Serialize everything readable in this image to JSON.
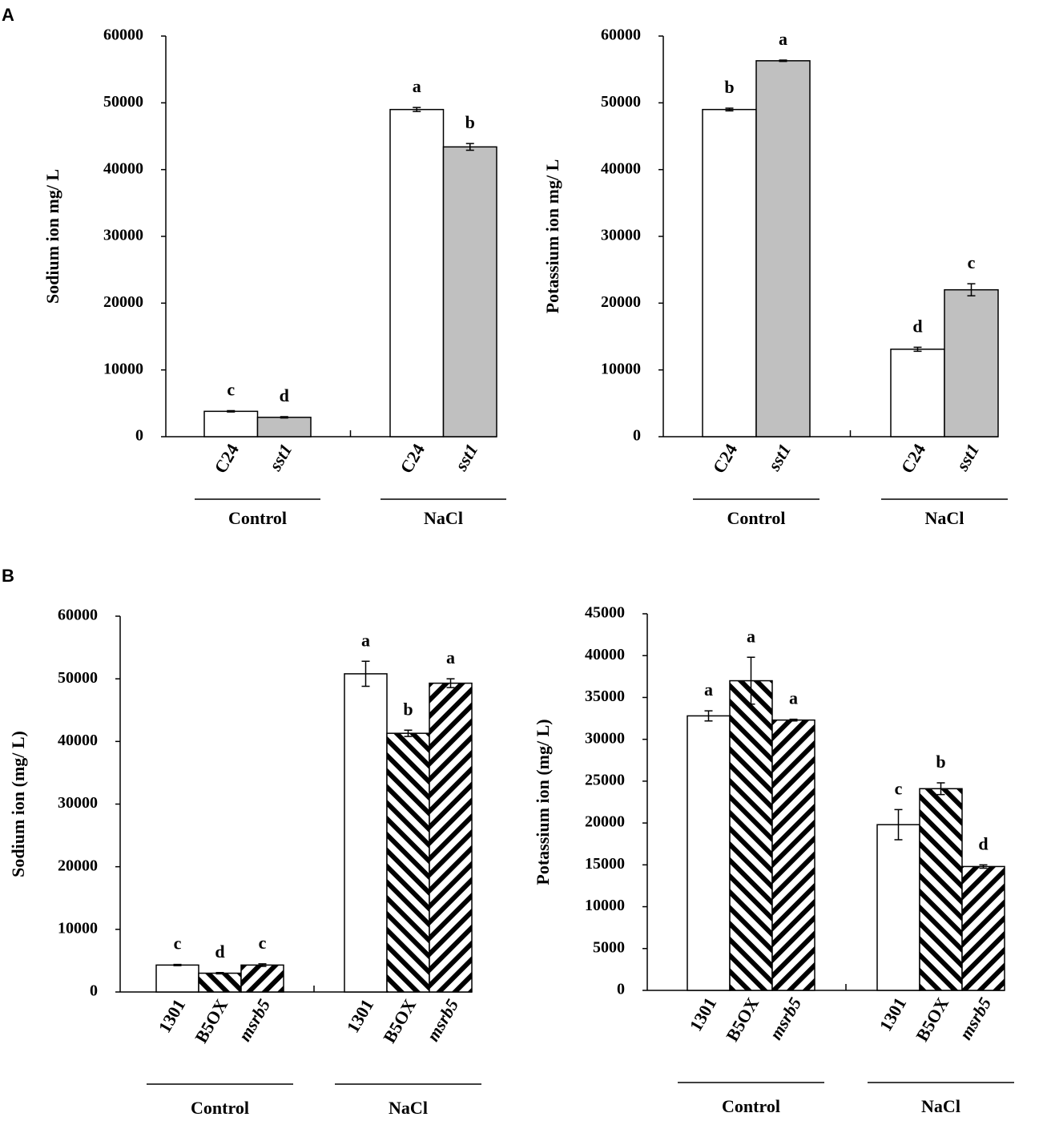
{
  "panel_labels": [
    "A",
    "B"
  ],
  "chart_data": [
    {
      "type": "bar",
      "ylabel": "Sodium ion mg/ L",
      "categories": [
        "Control",
        "NaCl"
      ],
      "ylim": [
        0,
        60000
      ],
      "yticks": [
        0,
        10000,
        20000,
        30000,
        40000,
        50000,
        60000
      ],
      "series": [
        {
          "name": "C24",
          "color": "#ffffff",
          "italic": false,
          "values": [
            3800,
            49000
          ],
          "errors": [
            100,
            300
          ],
          "labels": [
            "c",
            "a"
          ]
        },
        {
          "name": "sst1",
          "color": "#c0c0c0",
          "italic": true,
          "values": [
            2900,
            43400
          ],
          "errors": [
            100,
            500
          ],
          "labels": [
            "d",
            "b"
          ]
        }
      ]
    },
    {
      "type": "bar",
      "ylabel": "Potassium ion mg/ L",
      "categories": [
        "Control",
        "NaCl"
      ],
      "ylim": [
        0,
        60000
      ],
      "yticks": [
        0,
        10000,
        20000,
        30000,
        40000,
        50000,
        60000
      ],
      "series": [
        {
          "name": "C24",
          "color": "#ffffff",
          "italic": false,
          "values": [
            49000,
            13100
          ],
          "errors": [
            200,
            300
          ],
          "labels": [
            "b",
            "d"
          ]
        },
        {
          "name": "sst1",
          "color": "#c0c0c0",
          "italic": true,
          "values": [
            56300,
            22000
          ],
          "errors": [
            100,
            900
          ],
          "labels": [
            "a",
            "c"
          ]
        }
      ]
    },
    {
      "type": "bar",
      "ylabel": "Sodium ion (mg/ L)",
      "categories": [
        "Control",
        "NaCl"
      ],
      "ylim": [
        0,
        60000
      ],
      "yticks": [
        0,
        10000,
        20000,
        30000,
        40000,
        50000,
        60000
      ],
      "series": [
        {
          "name": "1301",
          "color": "#ffffff",
          "italic": false,
          "values": [
            4300,
            50800
          ],
          "errors": [
            100,
            2000
          ],
          "labels": [
            "c",
            "a"
          ]
        },
        {
          "name": "B5OX",
          "color": "#000000",
          "pattern": "backslash",
          "italic": false,
          "values": [
            3000,
            41300
          ],
          "errors": [
            100,
            500
          ],
          "labels": [
            "d",
            "b"
          ]
        },
        {
          "name": "msrb5",
          "color": "#000000",
          "pattern": "slash",
          "italic": true,
          "values": [
            4300,
            49300
          ],
          "errors": [
            200,
            700
          ],
          "labels": [
            "c",
            "a"
          ]
        }
      ]
    },
    {
      "type": "bar",
      "ylabel": "Potassium ion (mg/ L)",
      "categories": [
        "Control",
        "NaCl"
      ],
      "ylim": [
        0,
        45000
      ],
      "yticks": [
        0,
        5000,
        10000,
        15000,
        20000,
        25000,
        30000,
        35000,
        40000,
        45000
      ],
      "series": [
        {
          "name": "1301",
          "color": "#ffffff",
          "italic": false,
          "values": [
            32800,
            19800
          ],
          "errors": [
            600,
            1800
          ],
          "labels": [
            "a",
            "c"
          ]
        },
        {
          "name": "B5OX",
          "color": "#000000",
          "pattern": "backslash",
          "italic": false,
          "values": [
            37000,
            24100
          ],
          "errors": [
            2800,
            700
          ],
          "labels": [
            "a",
            "b"
          ]
        },
        {
          "name": "msrb5",
          "color": "#000000",
          "pattern": "slash",
          "italic": true,
          "values": [
            32300,
            14800
          ],
          "errors": [
            100,
            200
          ],
          "labels": [
            "a",
            "d"
          ]
        }
      ]
    }
  ]
}
